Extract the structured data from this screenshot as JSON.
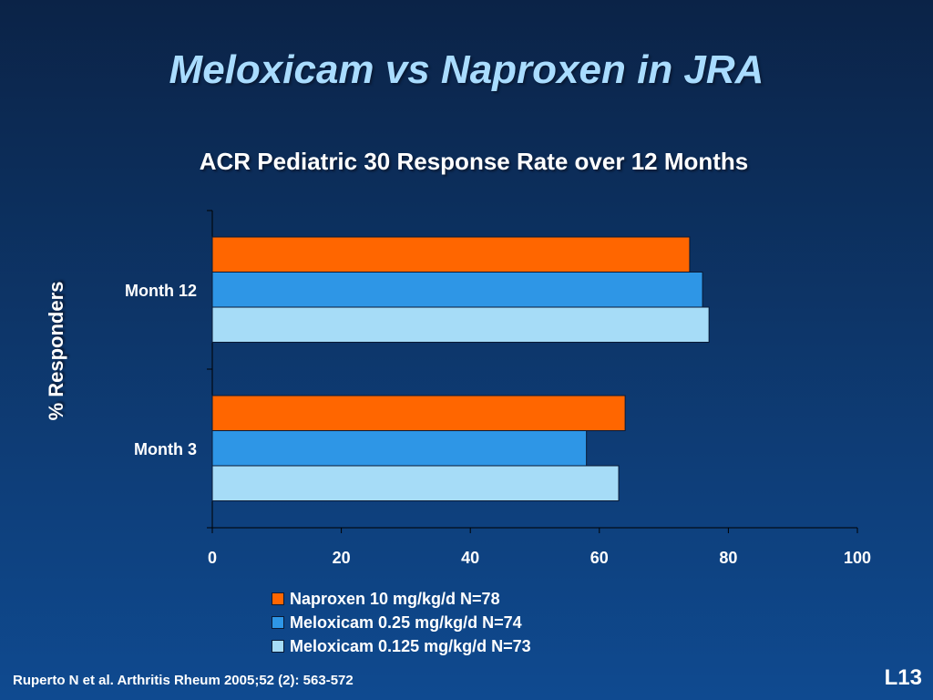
{
  "slide": {
    "title": "Meloxicam vs Naproxen in JRA",
    "citation": "Ruperto N et al. Arthritis Rheum 2005;52 (2): 563-572",
    "slide_number": "L13"
  },
  "chart_data": {
    "type": "bar",
    "orientation": "horizontal",
    "title": "ACR Pediatric 30 Response Rate over 12 Months",
    "ylabel": "% Responders",
    "xlabel": "",
    "xlim": [
      0,
      100
    ],
    "xticks": [
      0,
      20,
      40,
      60,
      80,
      100
    ],
    "xtick_labels": [
      "0",
      "20",
      "40",
      "60",
      "80",
      "100"
    ],
    "categories": [
      "Month 12",
      "Month 3"
    ],
    "series": [
      {
        "name": "Naproxen 10 mg/kg/d  N=78",
        "color": "#ff6600",
        "values": [
          74,
          64
        ]
      },
      {
        "name": "Meloxicam 0.25 mg/kg/d   N=74",
        "color": "#2e96e6",
        "values": [
          76,
          58
        ]
      },
      {
        "name": "Meloxicam 0.125 mg/kg/d  N=73",
        "color": "#a6dcf7",
        "values": [
          77,
          63
        ]
      }
    ],
    "legend_position": "bottom-center"
  }
}
